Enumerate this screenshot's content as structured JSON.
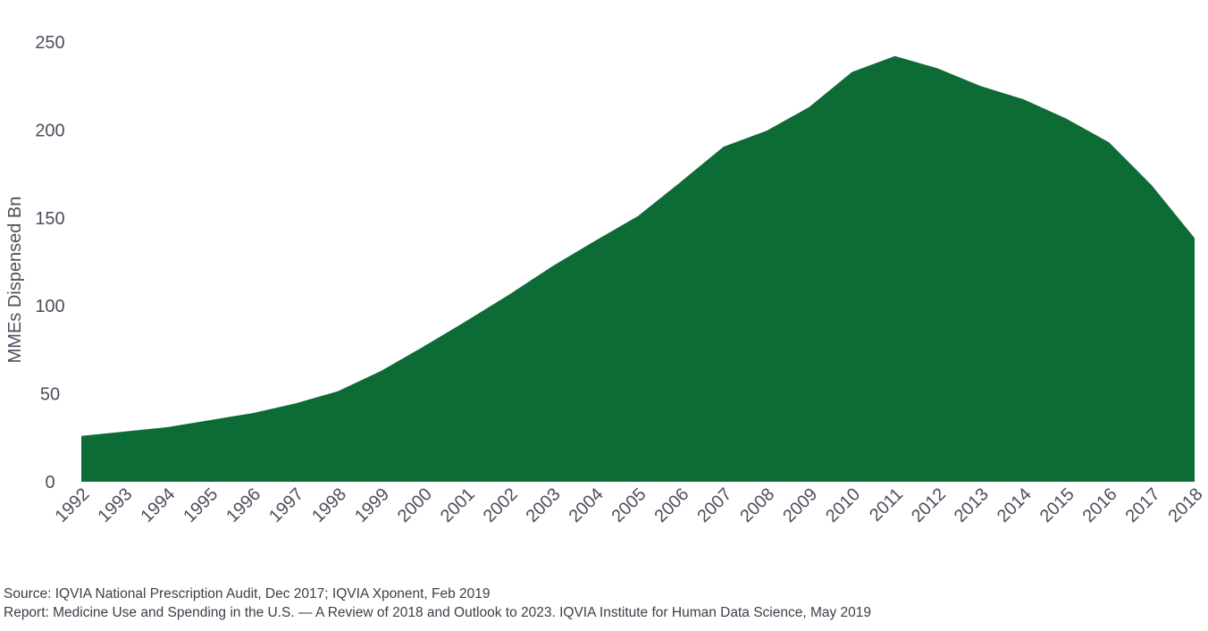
{
  "chart_data": {
    "type": "area",
    "title": "",
    "xlabel": "",
    "ylabel": "MMEs Dispensed Bn",
    "ylim": [
      0,
      250
    ],
    "yticks": [
      "0",
      "50",
      "100",
      "150",
      "200",
      "250"
    ],
    "grid": false,
    "color": "#0d6b35",
    "categories": [
      "1992",
      "1993",
      "1994",
      "1995",
      "1996",
      "1997",
      "1998",
      "1999",
      "2000",
      "2001",
      "2002",
      "2003",
      "2004",
      "2005",
      "2006",
      "2007",
      "2008",
      "2009",
      "2010",
      "2011",
      "2012",
      "2013",
      "2014",
      "2015",
      "2016",
      "2017",
      "2018"
    ],
    "values": [
      26,
      28.5,
      31,
      35,
      39,
      44.5,
      51.5,
      63,
      77,
      91.5,
      106.5,
      122.5,
      137,
      151,
      170.5,
      190.5,
      199.5,
      213,
      233,
      242,
      235,
      225,
      217.5,
      206.5,
      193,
      168.5,
      138.5
    ]
  },
  "footer": {
    "source": "Source: IQVIA National Prescription Audit, Dec 2017; IQVIA Xponent, Feb 2019",
    "report": "Report: Medicine Use and Spending in the U.S. — A Review of 2018 and Outlook to 2023. IQVIA Institute for Human Data Science, May 2019"
  }
}
